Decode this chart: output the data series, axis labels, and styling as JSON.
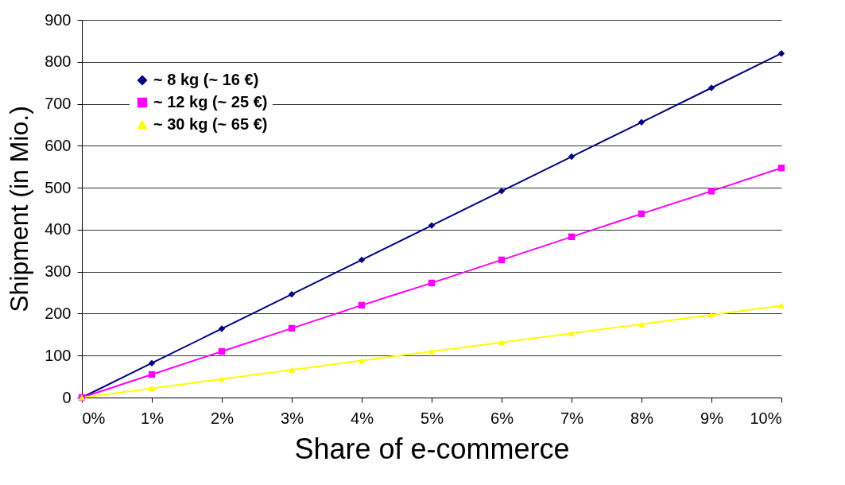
{
  "chart_data": {
    "type": "line",
    "xlabel": "Share of e-commerce",
    "ylabel": "Shipment (in Mio.)",
    "x": [
      0,
      1,
      2,
      3,
      4,
      5,
      6,
      7,
      8,
      9,
      10
    ],
    "xlim": [
      0,
      10
    ],
    "xticks": [
      {
        "value": 0,
        "label": "0%"
      },
      {
        "value": 1,
        "label": "1%"
      },
      {
        "value": 2,
        "label": "2%"
      },
      {
        "value": 3,
        "label": "3%"
      },
      {
        "value": 4,
        "label": "4%"
      },
      {
        "value": 5,
        "label": "5%"
      },
      {
        "value": 6,
        "label": "6%"
      },
      {
        "value": 7,
        "label": "7%"
      },
      {
        "value": 8,
        "label": "8%"
      },
      {
        "value": 9,
        "label": "9%"
      },
      {
        "value": 10,
        "label": "10%"
      }
    ],
    "ylim": [
      0,
      900
    ],
    "yticks": [
      0,
      100,
      200,
      300,
      400,
      500,
      600,
      700,
      800,
      900
    ],
    "grid": "y",
    "legend": "top left",
    "series": [
      {
        "name": "~ 8 kg (~ 16 €)",
        "color": "#000080",
        "marker": "diamond",
        "values": [
          0,
          82,
          164,
          246,
          328,
          410,
          492,
          574,
          656,
          738,
          820
        ]
      },
      {
        "name": "~ 12 kg (~ 25 €)",
        "color": "#ff00ff",
        "marker": "square",
        "values": [
          0,
          55,
          110,
          165,
          220,
          273,
          328,
          383,
          438,
          492,
          547
        ]
      },
      {
        "name": "~ 30 kg (~ 65 €)",
        "color": "#ffff00",
        "marker": "triangle",
        "values": [
          0,
          22,
          44,
          66,
          88,
          110,
          131,
          153,
          175,
          197,
          219
        ]
      }
    ]
  }
}
